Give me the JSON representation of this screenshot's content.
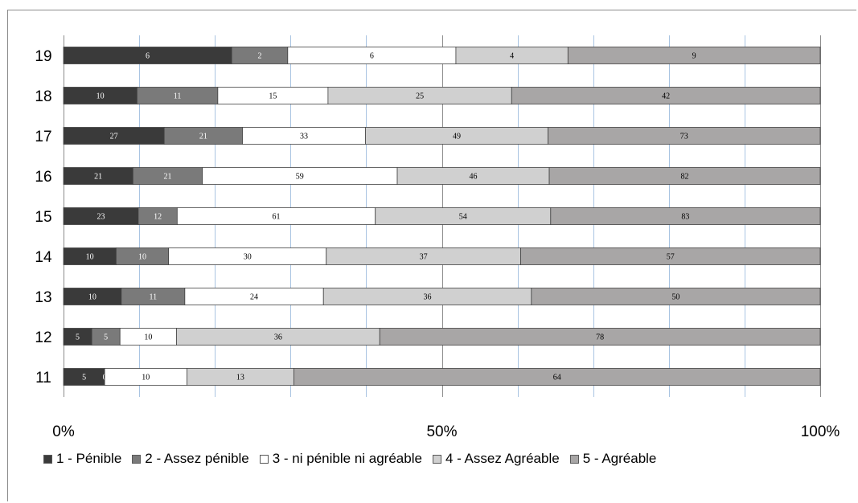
{
  "chart_data": {
    "type": "bar",
    "orientation": "horizontal",
    "stacked": "percent",
    "categories": [
      "19",
      "18",
      "17",
      "16",
      "15",
      "14",
      "13",
      "12",
      "11"
    ],
    "series": [
      {
        "name": "1 - Pénible",
        "color": "#3a3a3a",
        "label_color": "#ffffff",
        "values": [
          6,
          10,
          27,
          21,
          23,
          10,
          10,
          5,
          5
        ]
      },
      {
        "name": "2 - Assez pénible",
        "color": "#7a7a7a",
        "label_color": "#ffffff",
        "values": [
          2,
          11,
          21,
          21,
          12,
          10,
          11,
          5,
          0
        ]
      },
      {
        "name": "3 - ni pénible ni agréable",
        "color": "#ffffff",
        "label_color": "#000000",
        "values": [
          6,
          15,
          33,
          59,
          61,
          30,
          24,
          10,
          10
        ]
      },
      {
        "name": "4 - Assez Agréable",
        "color": "#d0d0d0",
        "label_color": "#000000",
        "values": [
          4,
          25,
          49,
          46,
          54,
          37,
          36,
          36,
          13
        ]
      },
      {
        "name": "5 - Agréable",
        "color": "#a8a6a6",
        "label_color": "#000000",
        "values": [
          9,
          42,
          73,
          82,
          83,
          57,
          50,
          78,
          64
        ]
      }
    ],
    "xlim": [
      0,
      100
    ],
    "x_ticks": [
      "0%",
      "50%",
      "100%"
    ],
    "major_gridlines": [
      0,
      50,
      100
    ],
    "minor_gridlines": [
      10,
      20,
      30,
      40,
      60,
      70,
      80,
      90
    ],
    "legend_position": "bottom",
    "colors": {
      "major_grid": "#8c8c8c",
      "minor_grid": "#a9c4e2",
      "bar_outline": "#404040"
    }
  }
}
